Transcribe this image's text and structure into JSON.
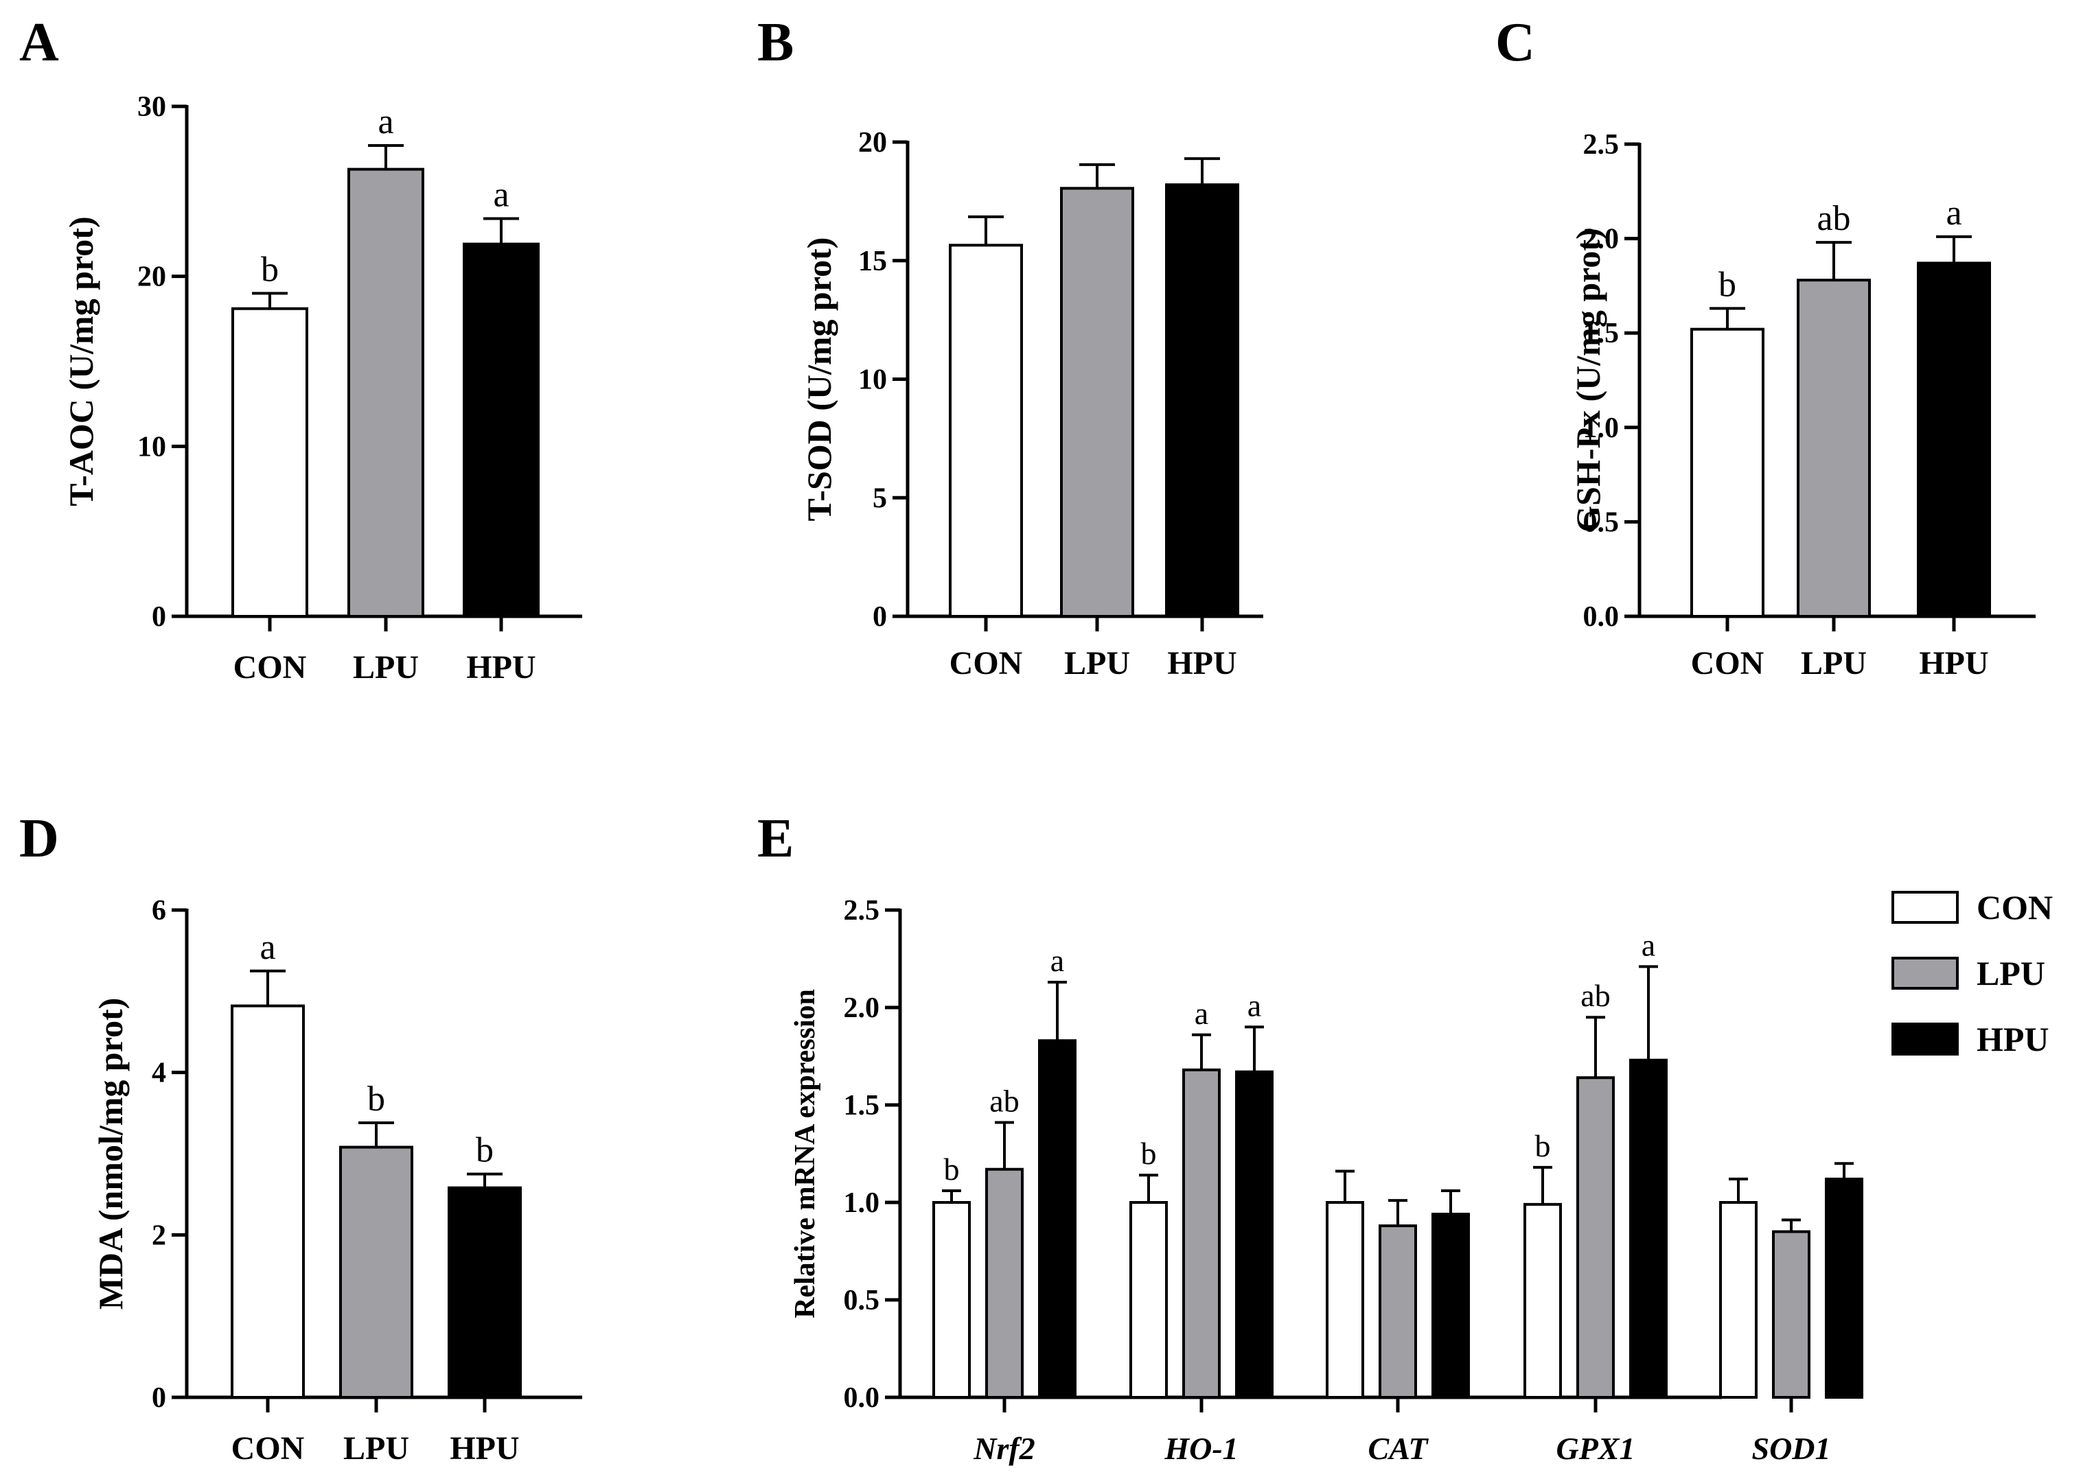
{
  "chart_data": [
    {
      "panel": "A",
      "type": "bar",
      "ylabel": "T-AOC (U/mg prot)",
      "ylim": [
        0,
        30
      ],
      "yticks": [
        "0",
        "10",
        "20",
        "30"
      ],
      "categories": [
        "CON",
        "LPU",
        "HPU"
      ],
      "values": [
        18.1,
        26.3,
        21.9
      ],
      "errors": [
        0.9,
        1.4,
        1.5
      ],
      "significance": [
        "b",
        "a",
        "a"
      ],
      "colors": [
        "#ffffff",
        "#a0a0a4",
        "#000000"
      ]
    },
    {
      "panel": "B",
      "type": "bar",
      "ylabel": "T-SOD (U/mg prot)",
      "ylim": [
        0,
        20
      ],
      "yticks": [
        "0",
        "5",
        "10",
        "15",
        "20"
      ],
      "categories": [
        "CON",
        "LPU",
        "HPU"
      ],
      "values": [
        15.65,
        18.05,
        18.2
      ],
      "errors": [
        1.2,
        1.0,
        1.1
      ],
      "significance": [
        "",
        "",
        ""
      ],
      "colors": [
        "#ffffff",
        "#a0a0a4",
        "#000000"
      ]
    },
    {
      "panel": "C",
      "type": "bar",
      "ylabel": "GSH-Px (U/mg prot)",
      "ylim": [
        0,
        2.5
      ],
      "yticks": [
        "0.0",
        "0.5",
        "1.0",
        "1.5",
        "2.0",
        "2.5"
      ],
      "categories": [
        "CON",
        "LPU",
        "HPU"
      ],
      "values": [
        1.52,
        1.78,
        1.87
      ],
      "errors": [
        0.11,
        0.2,
        0.14
      ],
      "significance": [
        "b",
        "ab",
        "a"
      ],
      "colors": [
        "#ffffff",
        "#a0a0a4",
        "#000000"
      ]
    },
    {
      "panel": "D",
      "type": "bar",
      "ylabel": "MDA (nmol/mg prot)",
      "ylim": [
        0,
        6
      ],
      "yticks": [
        "0",
        "2",
        "4",
        "6"
      ],
      "categories": [
        "CON",
        "LPU",
        "HPU"
      ],
      "values": [
        4.82,
        3.08,
        2.58
      ],
      "errors": [
        0.43,
        0.3,
        0.17
      ],
      "significance": [
        "a",
        "b",
        "b"
      ],
      "colors": [
        "#ffffff",
        "#a0a0a4",
        "#000000"
      ]
    },
    {
      "panel": "E",
      "type": "bar",
      "ylabel": "Relative mRNA expression",
      "ylim": [
        0,
        2.5
      ],
      "yticks": [
        "0.0",
        "0.5",
        "1.0",
        "1.5",
        "2.0",
        "2.5"
      ],
      "categories": [
        "Nrf2",
        "HO-1",
        "CAT",
        "GPX1",
        "SOD1"
      ],
      "legend": [
        "CON",
        "LPU",
        "HPU"
      ],
      "legend_position": "top-right",
      "colors": [
        "#ffffff",
        "#a0a0a4",
        "#000000"
      ],
      "series": [
        {
          "name": "CON",
          "values": [
            1.0,
            1.0,
            1.0,
            0.99,
            1.0
          ],
          "errors": [
            0.06,
            0.14,
            0.16,
            0.19,
            0.12
          ],
          "significance": [
            "b",
            "b",
            "",
            "b",
            ""
          ]
        },
        {
          "name": "LPU",
          "values": [
            1.17,
            1.68,
            0.88,
            1.64,
            0.85
          ],
          "errors": [
            0.24,
            0.18,
            0.13,
            0.31,
            0.06
          ],
          "significance": [
            "ab",
            "a",
            "",
            "ab",
            ""
          ]
        },
        {
          "name": "HPU",
          "values": [
            1.83,
            1.67,
            0.94,
            1.73,
            1.12
          ],
          "errors": [
            0.3,
            0.23,
            0.12,
            0.48,
            0.08
          ],
          "significance": [
            "a",
            "a",
            "",
            "a",
            ""
          ]
        }
      ]
    }
  ]
}
